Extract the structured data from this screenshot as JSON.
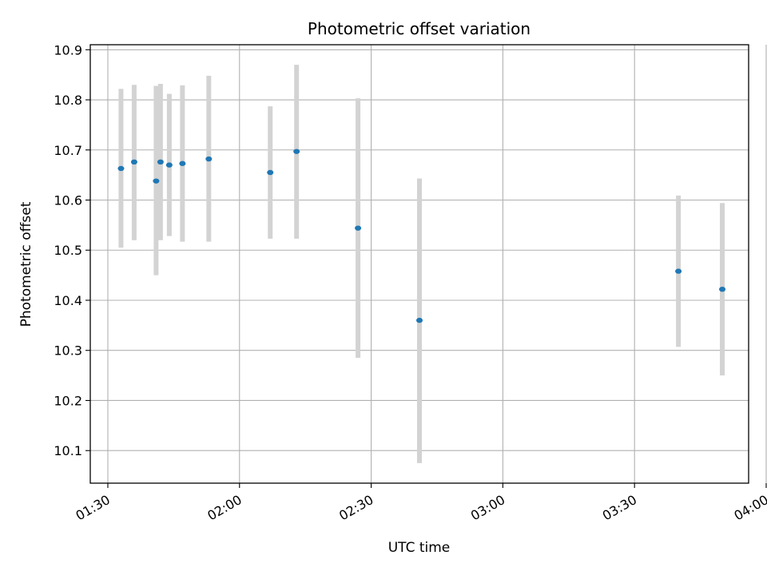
{
  "chart_data": {
    "type": "scatter",
    "title": "Photometric offset variation",
    "xlabel": "UTC time",
    "ylabel": "Photometric offset",
    "x_ticks": [
      "01:30",
      "02:00",
      "02:30",
      "03:00",
      "03:30",
      "04:00"
    ],
    "y_ticks": [
      "10.1",
      "10.2",
      "10.3",
      "10.4",
      "10.5",
      "10.6",
      "10.7",
      "10.8",
      "10.9"
    ],
    "xlim": [
      "01:26",
      "03:56"
    ],
    "ylim": [
      10.035,
      10.91
    ],
    "grid": true,
    "colors": {
      "point": "#1f77b4",
      "errorbar": "#d3d3d3",
      "grid": "#b0b0b0"
    },
    "points": [
      {
        "time": "01:33",
        "value": 10.663,
        "low": 10.505,
        "high": 10.822
      },
      {
        "time": "01:36",
        "value": 10.676,
        "low": 10.52,
        "high": 10.83
      },
      {
        "time": "01:41",
        "value": 10.638,
        "low": 10.45,
        "high": 10.828
      },
      {
        "time": "01:42",
        "value": 10.676,
        "low": 10.52,
        "high": 10.832
      },
      {
        "time": "01:44",
        "value": 10.67,
        "low": 10.528,
        "high": 10.812
      },
      {
        "time": "01:47",
        "value": 10.673,
        "low": 10.517,
        "high": 10.829
      },
      {
        "time": "01:53",
        "value": 10.682,
        "low": 10.517,
        "high": 10.848
      },
      {
        "time": "02:07",
        "value": 10.655,
        "low": 10.523,
        "high": 10.787
      },
      {
        "time": "02:13",
        "value": 10.697,
        "low": 10.523,
        "high": 10.87
      },
      {
        "time": "02:27",
        "value": 10.544,
        "low": 10.285,
        "high": 10.803
      },
      {
        "time": "02:41",
        "value": 10.36,
        "low": 10.075,
        "high": 10.643
      },
      {
        "time": "03:40",
        "value": 10.458,
        "low": 10.307,
        "high": 10.609
      },
      {
        "time": "03:50",
        "value": 10.422,
        "low": 10.25,
        "high": 10.594
      }
    ]
  }
}
